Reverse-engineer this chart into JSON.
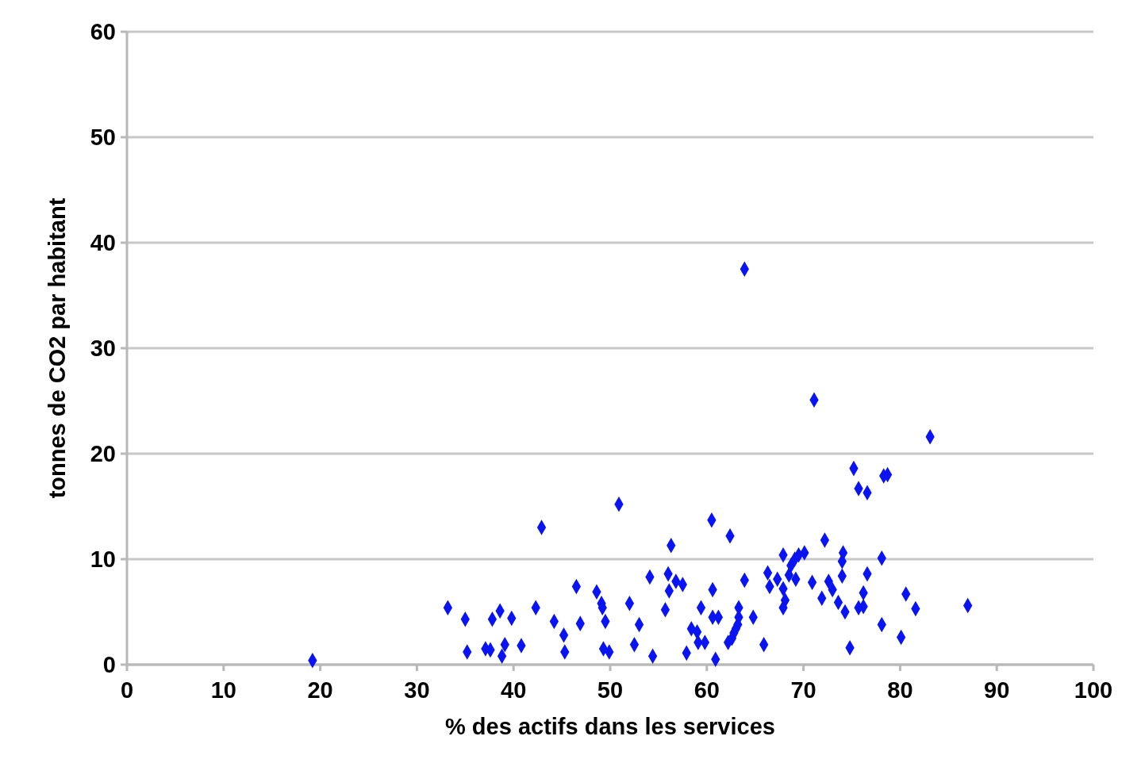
{
  "chart_data": {
    "type": "scatter",
    "xlabel": "% des actifs dans les services",
    "ylabel": "tonnes de CO2 par habitant",
    "xlim": [
      0,
      100
    ],
    "xticks": [
      0,
      10,
      20,
      30,
      40,
      50,
      60,
      70,
      80,
      90,
      100
    ],
    "ylim": [
      0,
      60
    ],
    "yticks": [
      0,
      10,
      20,
      30,
      40,
      50,
      60
    ],
    "grid": "y",
    "marker": "diamond",
    "series": [
      {
        "color": "#0a14f0",
        "x": [
          19.2,
          33.2,
          35.0,
          35.2,
          37.1,
          37.6,
          37.8,
          38.6,
          39.1,
          38.8,
          39.8,
          40.8,
          42.3,
          42.9,
          44.2,
          45.2,
          45.3,
          46.5,
          46.9,
          48.6,
          49.1,
          49.2,
          49.5,
          49.3,
          49.9,
          50.9,
          52.0,
          52.5,
          53.0,
          54.1,
          54.4,
          55.7,
          56.0,
          56.1,
          56.3,
          56.8,
          57.5,
          57.9,
          58.4,
          59.0,
          59.1,
          59.4,
          59.8,
          60.5,
          60.6,
          60.6,
          61.2,
          60.9,
          62.4,
          62.2,
          62.6,
          62.8,
          63.0,
          63.2,
          63.3,
          63.3,
          63.9,
          63.9,
          64.8,
          65.9,
          66.3,
          66.5,
          67.3,
          67.9,
          67.9,
          68.1,
          67.9,
          68.5,
          68.7,
          69.1,
          69.5,
          69.2,
          70.1,
          71.1,
          70.9,
          71.9,
          72.2,
          72.6,
          73.0,
          73.6,
          74.0,
          74.1,
          74.0,
          74.3,
          74.8,
          75.2,
          75.7,
          76.6,
          75.7,
          76.2,
          76.2,
          76.6,
          78.1,
          78.1,
          78.3,
          78.7,
          80.1,
          80.6,
          81.6,
          83.1,
          87.0
        ],
        "values": [
          0.4,
          5.4,
          4.3,
          1.2,
          1.5,
          1.4,
          4.3,
          5.1,
          1.9,
          0.8,
          4.4,
          1.8,
          5.4,
          13.0,
          4.1,
          2.8,
          1.2,
          7.4,
          3.9,
          6.9,
          5.8,
          5.4,
          4.1,
          1.5,
          1.2,
          15.2,
          5.8,
          1.9,
          3.8,
          8.3,
          0.8,
          5.2,
          8.6,
          7.0,
          11.3,
          7.9,
          7.6,
          1.1,
          3.4,
          3.1,
          2.1,
          5.4,
          2.1,
          13.7,
          7.1,
          4.5,
          4.5,
          0.5,
          12.2,
          2.1,
          2.5,
          3.0,
          3.4,
          3.8,
          5.4,
          4.5,
          37.5,
          8.0,
          4.5,
          1.9,
          8.7,
          7.4,
          8.1,
          10.4,
          7.2,
          6.1,
          5.4,
          8.5,
          9.4,
          10.0,
          10.4,
          8.1,
          10.6,
          25.1,
          7.8,
          6.3,
          11.8,
          7.9,
          7.1,
          5.9,
          9.8,
          10.6,
          8.4,
          5.0,
          1.6,
          18.6,
          16.7,
          16.3,
          5.4,
          6.8,
          5.5,
          8.6,
          10.1,
          3.8,
          17.9,
          18.0,
          2.6,
          6.7,
          5.3,
          21.6,
          5.6
        ]
      }
    ]
  }
}
